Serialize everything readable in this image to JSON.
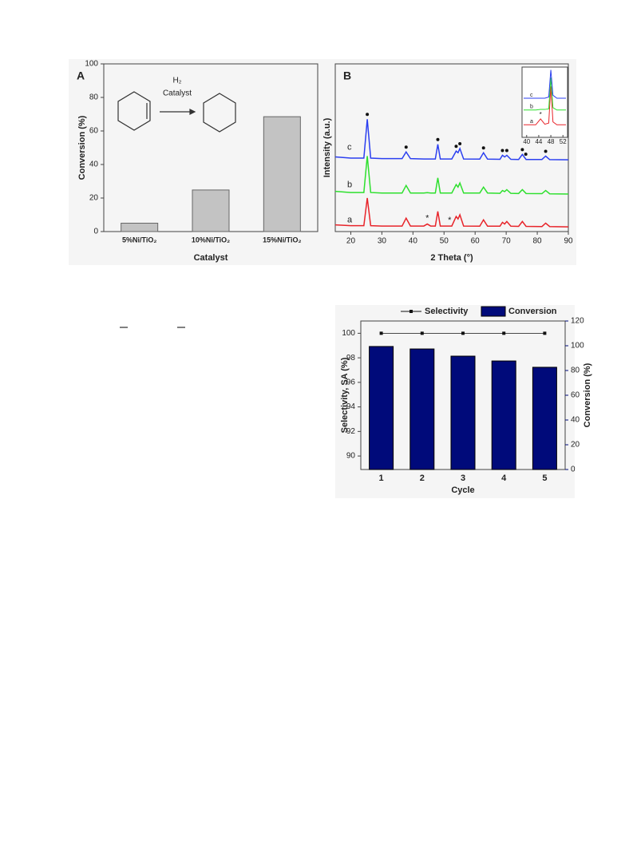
{
  "chart_data": [
    {
      "type": "bar",
      "panel_label": "A",
      "ylabel": "Conversion (%)",
      "xlabel": "Catalyst",
      "categories": [
        "5%Ni/TiO₂",
        "10%Ni/TiO₂",
        "15%Ni/TiO₂"
      ],
      "values": [
        5,
        24.8,
        68.5
      ],
      "color": "#c3c3c3",
      "ylim": [
        0,
        100
      ],
      "yticks": [
        0,
        20,
        40,
        60,
        80,
        100
      ],
      "annotations": [
        "H₂",
        "Catalyst"
      ]
    },
    {
      "type": "line",
      "panel_label": "B",
      "ylabel": "Intensity (a.u.)",
      "xlabel": "2 Theta (°)",
      "xlim": [
        15,
        90
      ],
      "xticks": [
        20,
        30,
        40,
        50,
        60,
        70,
        80,
        90
      ],
      "ylim": [
        0,
        100
      ],
      "x": [
        15,
        20,
        24.2,
        25.3,
        26.4,
        30,
        36.5,
        37.8,
        39.2,
        43.5,
        44.6,
        45.7,
        47.2,
        48,
        48.8,
        52.5,
        53.9,
        54.5,
        55.1,
        56.3,
        61.5,
        62.7,
        64,
        68,
        68.8,
        69.5,
        70.2,
        71.5,
        74,
        75.2,
        76.4,
        81.5,
        82.7,
        84,
        90
      ],
      "series": [
        {
          "name": "a",
          "color": "#e8242a",
          "values": [
            4,
            3.5,
            3.5,
            20,
            3.5,
            3.3,
            3.3,
            8,
            3.3,
            3.3,
            4.5,
            3.3,
            3.3,
            12,
            3.3,
            3.3,
            9,
            7.5,
            10,
            3.3,
            3.2,
            7,
            3.2,
            3.2,
            5.5,
            4.5,
            6,
            3.2,
            3.1,
            6,
            3.1,
            3.0,
            5,
            3.0,
            2.8
          ]
        },
        {
          "name": "b",
          "color": "#2ee02e",
          "values": [
            24,
            23.3,
            23.3,
            45,
            23.3,
            23,
            23,
            27.5,
            23,
            23,
            23.2,
            23,
            23,
            32,
            23,
            23,
            28,
            26.5,
            29,
            23,
            23,
            26.5,
            23,
            22.8,
            24.5,
            23.8,
            25,
            22.8,
            22.7,
            25,
            22.7,
            22.6,
            24.5,
            22.5,
            22.4
          ]
        },
        {
          "name": "c",
          "color": "#2b3ff0",
          "values": [
            44.5,
            43.8,
            43.8,
            67,
            43.8,
            43.5,
            43.5,
            47.5,
            43.5,
            43.3,
            43.3,
            43.3,
            43.3,
            52,
            43.3,
            43.3,
            48,
            47,
            49.5,
            43.3,
            43.2,
            47,
            43.2,
            43.1,
            45.5,
            44.5,
            45.5,
            43.1,
            43,
            46,
            43,
            43,
            45,
            42.9,
            42.8
          ]
        }
      ],
      "peak_markers_x": [
        25.3,
        37.8,
        48,
        53.9,
        55.1,
        62.7,
        68.8,
        70.2,
        75.2,
        76.3,
        82.7
      ],
      "annotations": [
        {
          "text": "*",
          "x": 44.6
        },
        {
          "text": "*",
          "x": 51.8
        }
      ],
      "inset": {
        "xlim": [
          39,
          53
        ],
        "xticks": [
          40,
          44,
          48,
          52
        ],
        "ylim": [
          0,
          100
        ],
        "x": [
          39,
          43,
          44.6,
          46,
          47.3,
          48,
          48.7,
          50,
          53
        ],
        "series": [
          {
            "name": "a",
            "color": "#e8242a",
            "values": [
              5,
              5,
              15,
              6,
              8,
              70,
              10,
              5,
              5
            ]
          },
          {
            "name": "b",
            "color": "#2ee02e",
            "values": [
              30,
              30,
              31,
              31,
              32,
              85,
              34,
              30,
              30
            ]
          },
          {
            "name": "c",
            "color": "#2b3ff0",
            "values": [
              50,
              50,
              50,
              50,
              52,
              98,
              55,
              50,
              50
            ]
          }
        ],
        "annotations": [
          {
            "text": "*",
            "x": 44.6
          }
        ]
      }
    },
    {
      "type": "combo",
      "xlabel": "Cycle",
      "ylabel": "Selectivity, SA (%)",
      "y2label": "Conversion (%)",
      "categories": [
        "1",
        "2",
        "3",
        "4",
        "5"
      ],
      "ylim": [
        88.9,
        101
      ],
      "yticks": [
        90,
        92,
        94,
        96,
        98,
        100
      ],
      "y2lim": [
        0,
        120
      ],
      "y2ticks": [
        0,
        20,
        40,
        60,
        80,
        100,
        120
      ],
      "series": [
        {
          "name": "Selectivity",
          "type": "line",
          "color": "#111111",
          "values": [
            100,
            100,
            100,
            100,
            100
          ]
        },
        {
          "name": "Conversion",
          "type": "bar",
          "axis": "y2",
          "color": "#000a7a",
          "values": [
            99.4,
            97.4,
            91.6,
            87.7,
            82.6
          ]
        }
      ]
    }
  ]
}
